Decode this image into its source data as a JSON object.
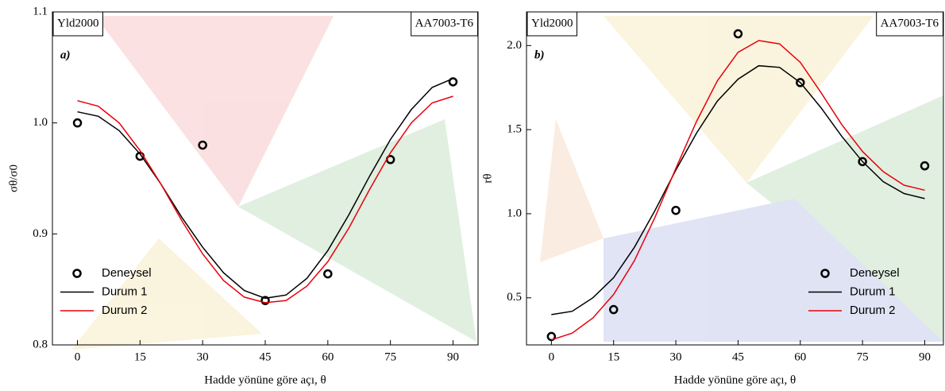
{
  "chart_data": [
    {
      "type": "line",
      "annotations": [
        "Yld2000",
        "AA7003-T6",
        "a)"
      ],
      "xlabel": "Hadde yönüne göre açı, θ",
      "ylabel": "σθ/σ0",
      "xlim": [
        -6,
        96
      ],
      "xticks": [
        0,
        15,
        30,
        45,
        60,
        75,
        90
      ],
      "ylim": [
        0.8,
        1.1
      ],
      "yticks": [
        0.8,
        0.9,
        {
          "value": 1,
          "label": "1.0"
        },
        1.1
      ],
      "legend": "lower left",
      "series": [
        {
          "name": "Deneysel",
          "color": "#000000",
          "marker": "circle",
          "x": [
            0,
            15,
            30,
            45,
            60,
            75,
            90
          ],
          "values": [
            1.0,
            0.97,
            0.98,
            0.84,
            0.864,
            0.967,
            1.037
          ]
        },
        {
          "name": "Durum 1",
          "color": "#000000",
          "marker": "line",
          "x": [
            0,
            5,
            10,
            15,
            20,
            25,
            30,
            35,
            40,
            45,
            50,
            55,
            60,
            65,
            70,
            75,
            80,
            85,
            90
          ],
          "values": [
            1.01,
            1.006,
            0.993,
            0.972,
            0.945,
            0.915,
            0.888,
            0.865,
            0.849,
            0.842,
            0.845,
            0.86,
            0.885,
            0.917,
            0.952,
            0.985,
            1.012,
            1.032,
            1.04
          ]
        },
        {
          "name": "Durum 2",
          "color": "#e8000b",
          "marker": "line",
          "x": [
            0,
            5,
            10,
            15,
            20,
            25,
            30,
            35,
            40,
            45,
            50,
            55,
            60,
            65,
            70,
            75,
            80,
            85,
            90
          ],
          "values": [
            1.02,
            1.015,
            1.0,
            0.975,
            0.945,
            0.912,
            0.882,
            0.858,
            0.843,
            0.838,
            0.84,
            0.853,
            0.875,
            0.905,
            0.94,
            0.973,
            1.0,
            1.018,
            1.024
          ]
        }
      ]
    },
    {
      "type": "line",
      "annotations": [
        "Yld2000",
        "AA7003-T6",
        "b)"
      ],
      "xlabel": "Hadde yönüne göre açı, θ",
      "ylabel": "rθ",
      "xlim": [
        -6,
        94.5
      ],
      "xticks": [
        0,
        15,
        30,
        45,
        60,
        75,
        90
      ],
      "ylim": [
        0.22,
        2.2
      ],
      "yticks": [
        0.5,
        {
          "value": 1,
          "label": "1.0"
        },
        1.5,
        {
          "value": 2,
          "label": "2.0"
        }
      ],
      "legend": "lower right",
      "series": [
        {
          "name": "Deneysel",
          "color": "#000000",
          "marker": "circle",
          "x": [
            0,
            15,
            30,
            45,
            60,
            75,
            90
          ],
          "values": [
            0.27,
            0.43,
            1.02,
            2.07,
            1.78,
            1.31,
            1.285
          ]
        },
        {
          "name": "Durum 1",
          "color": "#000000",
          "marker": "line",
          "x": [
            0,
            5,
            10,
            15,
            20,
            25,
            30,
            35,
            40,
            45,
            50,
            55,
            60,
            65,
            70,
            75,
            80,
            85,
            90
          ],
          "values": [
            0.4,
            0.42,
            0.5,
            0.62,
            0.8,
            1.02,
            1.26,
            1.48,
            1.67,
            1.8,
            1.88,
            1.87,
            1.78,
            1.63,
            1.46,
            1.31,
            1.19,
            1.12,
            1.09
          ]
        },
        {
          "name": "Durum 2",
          "color": "#e8000b",
          "marker": "line",
          "x": [
            0,
            5,
            10,
            15,
            20,
            25,
            30,
            35,
            40,
            45,
            50,
            55,
            60,
            65,
            70,
            75,
            80,
            85,
            90
          ],
          "values": [
            0.25,
            0.29,
            0.38,
            0.52,
            0.72,
            0.98,
            1.27,
            1.55,
            1.79,
            1.96,
            2.03,
            2.01,
            1.9,
            1.72,
            1.53,
            1.37,
            1.25,
            1.17,
            1.14
          ]
        }
      ]
    }
  ]
}
